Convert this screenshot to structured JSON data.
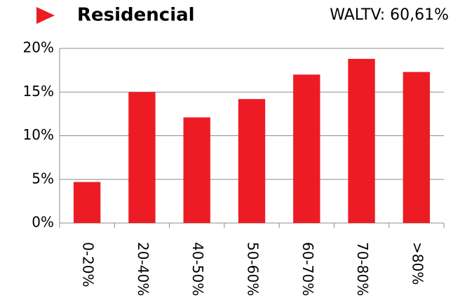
{
  "chart_data": {
    "type": "bar",
    "title": "Residencial",
    "subtitle": "WALTV: 60,61%",
    "categories": [
      "0-20%",
      "20-40%",
      "40-50%",
      "50-60%",
      "60-70%",
      "70-80%",
      ">80%"
    ],
    "values": [
      4.7,
      15.0,
      12.1,
      14.2,
      17.0,
      18.8,
      17.3
    ],
    "color": "#ed1c24",
    "ylim": [
      0,
      20
    ],
    "yticks": [
      {
        "value": 0,
        "label": "0%"
      },
      {
        "value": 5,
        "label": "5%"
      },
      {
        "value": 10,
        "label": "10%"
      },
      {
        "value": 15,
        "label": "15%"
      },
      {
        "value": 20,
        "label": "20%"
      }
    ],
    "grid": true
  }
}
